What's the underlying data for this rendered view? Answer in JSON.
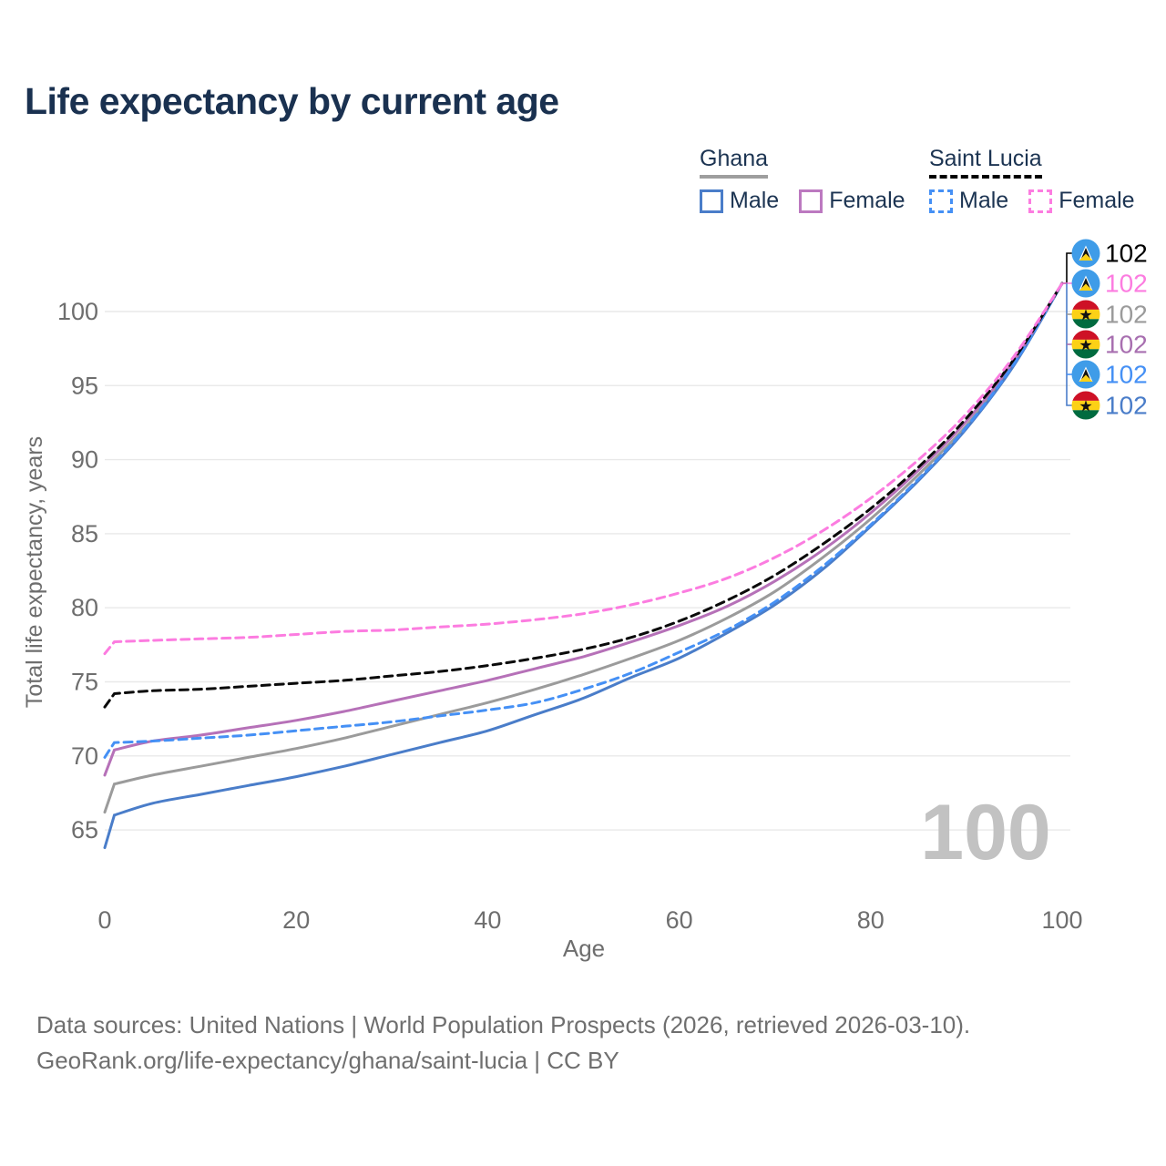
{
  "title": "Life expectancy by current age",
  "legend": {
    "groups": [
      {
        "id": "ghana",
        "label": "Ghana",
        "underline_style": "solid",
        "underline_color": "#9e9e9e",
        "items": [
          {
            "id": "ghana-male",
            "label": "Male",
            "color": "#4a7dc9",
            "dashed": false
          },
          {
            "id": "ghana-female",
            "label": "Female",
            "color": "#bc79c0",
            "dashed": false
          }
        ]
      },
      {
        "id": "saint-lucia",
        "label": "Saint Lucia",
        "underline_style": "dashed",
        "underline_color": "#000000",
        "items": [
          {
            "id": "saint-lucia-male",
            "label": "Male",
            "color": "#4590f5",
            "dashed": true
          },
          {
            "id": "saint-lucia-female",
            "label": "Female",
            "color": "#fc7ce0",
            "dashed": true
          }
        ]
      }
    ]
  },
  "watermark": "100",
  "footer": {
    "line1": "Data sources: United Nations | World Population Prospects (2026, retrieved 2026-03-10).",
    "line2": "GeoRank.org/life-expectancy/ghana/saint-lucia | CC BY"
  },
  "chart_data": {
    "type": "line",
    "title": "Life expectancy by current age",
    "xlabel": "Age",
    "ylabel": "Total life expectancy, years",
    "xlim": [
      0,
      100
    ],
    "ylim": [
      63.5,
      103
    ],
    "x_ticks": [
      0,
      20,
      40,
      60,
      80,
      100
    ],
    "y_ticks": [
      65,
      70,
      75,
      80,
      85,
      90,
      95,
      100
    ],
    "grid": "horizontal",
    "legend_position": "top-right",
    "x": [
      0,
      1,
      5,
      10,
      15,
      20,
      25,
      30,
      35,
      40,
      45,
      50,
      55,
      60,
      65,
      70,
      75,
      80,
      85,
      90,
      95,
      100
    ],
    "series": [
      {
        "id": "ghana-mean",
        "name": "Ghana (both sexes)",
        "country": "Ghana",
        "color": "#9b9b9b",
        "dashed": false,
        "values": [
          66.2,
          68.1,
          68.7,
          69.3,
          69.9,
          70.5,
          71.2,
          72.0,
          72.8,
          73.6,
          74.5,
          75.5,
          76.6,
          77.8,
          79.3,
          81.1,
          83.4,
          86.0,
          89.0,
          92.3,
          96.5,
          101.9
        ]
      },
      {
        "id": "ghana-male",
        "name": "Ghana male",
        "country": "Ghana",
        "color": "#4a7dc9",
        "dashed": false,
        "values": [
          63.8,
          66.0,
          66.8,
          67.4,
          68.0,
          68.6,
          69.3,
          70.1,
          70.9,
          71.7,
          72.8,
          73.9,
          75.3,
          76.6,
          78.3,
          80.2,
          82.6,
          85.5,
          88.6,
          92.1,
          96.4,
          101.9
        ]
      },
      {
        "id": "ghana-female",
        "name": "Ghana female",
        "country": "Ghana",
        "color": "#b671b8",
        "dashed": false,
        "values": [
          68.7,
          70.4,
          71.0,
          71.4,
          71.9,
          72.4,
          73.0,
          73.7,
          74.4,
          75.1,
          75.9,
          76.7,
          77.7,
          78.8,
          80.1,
          81.8,
          83.9,
          86.4,
          89.3,
          92.6,
          96.7,
          101.9
        ]
      },
      {
        "id": "saint-lucia-male",
        "name": "Saint Lucia male",
        "country": "Saint Lucia",
        "color": "#4590f5",
        "dashed": true,
        "values": [
          69.9,
          70.9,
          71.0,
          71.2,
          71.4,
          71.7,
          72.0,
          72.3,
          72.7,
          73.1,
          73.6,
          74.5,
          75.6,
          77.0,
          78.5,
          80.4,
          82.8,
          85.6,
          88.7,
          92.2,
          96.5,
          101.9
        ]
      },
      {
        "id": "saint-lucia-mean",
        "name": "Saint Lucia (both sexes)",
        "country": "Saint Lucia",
        "color": "#0a0a0a",
        "dashed": true,
        "values": [
          73.3,
          74.2,
          74.4,
          74.5,
          74.7,
          74.9,
          75.1,
          75.4,
          75.7,
          76.1,
          76.6,
          77.2,
          78.0,
          79.1,
          80.5,
          82.2,
          84.3,
          86.7,
          89.5,
          92.8,
          96.8,
          101.9
        ]
      },
      {
        "id": "saint-lucia-female",
        "name": "Saint Lucia female",
        "country": "Saint Lucia",
        "color": "#fc7ce0",
        "dashed": true,
        "values": [
          76.9,
          77.7,
          77.8,
          77.9,
          78.0,
          78.2,
          78.4,
          78.5,
          78.7,
          78.9,
          79.2,
          79.6,
          80.2,
          81.0,
          82.0,
          83.4,
          85.2,
          87.4,
          90.0,
          93.1,
          97.0,
          101.9
        ]
      }
    ],
    "end_labels": [
      {
        "series": "saint-lucia-mean",
        "flag": "saint-lucia",
        "value": "102",
        "color": "#000000"
      },
      {
        "series": "saint-lucia-female",
        "flag": "saint-lucia",
        "value": "102",
        "color": "#fc7ce0"
      },
      {
        "series": "ghana-mean",
        "flag": "ghana",
        "value": "102",
        "color": "#9b9b9b"
      },
      {
        "series": "ghana-female",
        "flag": "ghana",
        "value": "102",
        "color": "#a86fb0"
      },
      {
        "series": "saint-lucia-male",
        "flag": "saint-lucia",
        "value": "102",
        "color": "#4590f5"
      },
      {
        "series": "ghana-male",
        "flag": "ghana",
        "value": "102",
        "color": "#4a7dc9"
      }
    ],
    "age_counter": "100"
  }
}
